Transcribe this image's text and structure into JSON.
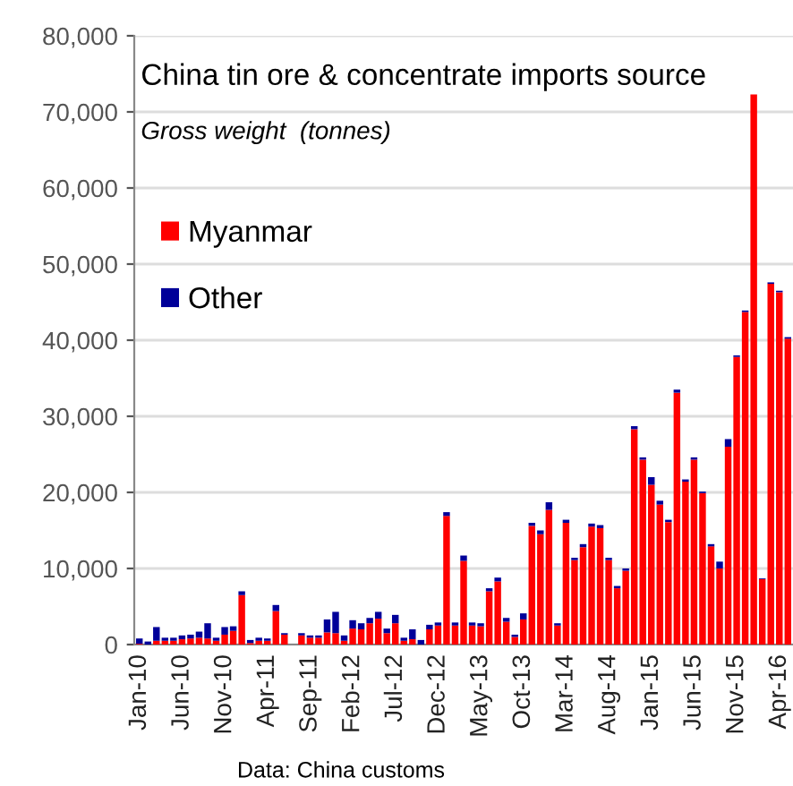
{
  "chart_data": {
    "type": "bar",
    "stacked": true,
    "title": "China tin ore & concentrate imports source",
    "subtitle": "Gross weight  (tonnes)",
    "annotations": [
      "Data: China customs"
    ],
    "categories": [
      "Jan-10",
      null,
      null,
      null,
      null,
      "Jun-10",
      null,
      null,
      null,
      null,
      "Nov-10",
      null,
      null,
      null,
      null,
      "Apr-11",
      null,
      null,
      null,
      null,
      "Sep-11",
      null,
      null,
      null,
      null,
      "Feb-12",
      null,
      null,
      null,
      null,
      "Jul-12",
      null,
      null,
      null,
      null,
      "Dec-12",
      null,
      null,
      null,
      null,
      "May-13",
      null,
      null,
      null,
      null,
      "Oct-13",
      null,
      null,
      null,
      null,
      "Mar-14",
      null,
      null,
      null,
      null,
      "Aug-14",
      null,
      null,
      null,
      null,
      "Jan-15",
      null,
      null,
      null,
      null,
      "Jun-15",
      null,
      null,
      null,
      null,
      "Nov-15",
      null,
      null,
      null,
      null,
      "Apr-16",
      null
    ],
    "series": [
      {
        "name": "Myanmar",
        "color": "#ff0000",
        "values": [
          100,
          0,
          500,
          500,
          500,
          700,
          800,
          900,
          800,
          500,
          1300,
          1800,
          6500,
          200,
          500,
          500,
          4400,
          1300,
          0,
          1200,
          900,
          900,
          1600,
          1500,
          500,
          2100,
          2000,
          2800,
          3400,
          1500,
          2800,
          500,
          700,
          0,
          2000,
          2500,
          16900,
          2500,
          11000,
          2500,
          2400,
          7000,
          8300,
          3000,
          1000,
          3300,
          15600,
          14500,
          17700,
          2500,
          16000,
          11100,
          12800,
          15500,
          15300,
          11100,
          7400,
          9700,
          28300,
          24300,
          21000,
          18400,
          16100,
          33100,
          21400,
          24300,
          19900,
          12900,
          10000,
          26000,
          37800,
          43700,
          72300,
          8600,
          47400,
          46300,
          40200
        ]
      },
      {
        "name": "Other",
        "color": "#000099",
        "values": [
          700,
          400,
          1800,
          400,
          400,
          500,
          500,
          800,
          2000,
          400,
          1000,
          600,
          500,
          400,
          400,
          300,
          800,
          200,
          0,
          300,
          300,
          300,
          1700,
          2800,
          700,
          1100,
          800,
          700,
          900,
          600,
          1100,
          400,
          1300,
          600,
          600,
          400,
          500,
          400,
          700,
          400,
          400,
          400,
          500,
          500,
          300,
          800,
          400,
          500,
          1000,
          300,
          400,
          300,
          400,
          400,
          400,
          300,
          300,
          300,
          400,
          300,
          1000,
          500,
          300,
          400,
          300,
          300,
          200,
          300,
          900,
          1000,
          200,
          200,
          null,
          100,
          200,
          200,
          200
        ]
      }
    ],
    "ylim": [
      0,
      80000
    ],
    "yticks": [
      {
        "value": 0,
        "label": "0"
      },
      {
        "value": 10000,
        "label": "10,000"
      },
      {
        "value": 20000,
        "label": "20,000"
      },
      {
        "value": 30000,
        "label": "30,000"
      },
      {
        "value": 40000,
        "label": "40,000"
      },
      {
        "value": 50000,
        "label": "50,000"
      },
      {
        "value": 60000,
        "label": "60,000"
      },
      {
        "value": 70000,
        "label": "70,000"
      },
      {
        "value": 80000,
        "label": "80,000"
      }
    ],
    "grid": "y",
    "legend": "left"
  }
}
